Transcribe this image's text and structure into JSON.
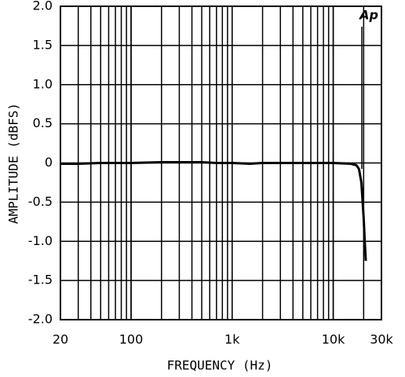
{
  "chart_data": {
    "type": "line",
    "annotation": "Ap",
    "x_label": "FREQUENCY (Hz)",
    "y_label": "AMPLITUDE (dBFS)",
    "log_x": true,
    "grid": true,
    "minor_grid": true,
    "xlim": [
      20,
      30000
    ],
    "ylim": [
      -2,
      2
    ],
    "xticks": [
      20,
      {
        "value": 100,
        "label": "100"
      },
      {
        "value": 1000,
        "label": "1k"
      },
      {
        "value": 10000,
        "label": "10k"
      },
      {
        "value": 30000,
        "label": "30k"
      }
    ],
    "yticks": [
      {
        "value": -2,
        "label": "-2.0"
      },
      -1.5,
      {
        "value": -1,
        "label": "-1.0"
      },
      -0.5,
      0,
      0.5,
      {
        "value": 1,
        "label": "1.0"
      },
      1.5,
      {
        "value": 2,
        "label": "2.0"
      }
    ],
    "series": [
      {
        "color": "#000000",
        "x": [
          20,
          30,
          50,
          100,
          200,
          300,
          500,
          700,
          1000,
          1500,
          2000,
          3000,
          5000,
          10000,
          15000,
          17000,
          18000,
          19000,
          20000,
          20500,
          21000
        ],
        "values": [
          -0.01,
          -0.01,
          0,
          0,
          0.01,
          0.01,
          0.01,
          0,
          0,
          -0.01,
          0,
          0,
          0,
          0,
          -0.01,
          -0.03,
          -0.08,
          -0.25,
          -0.7,
          -1.0,
          -1.25
        ]
      }
    ]
  }
}
